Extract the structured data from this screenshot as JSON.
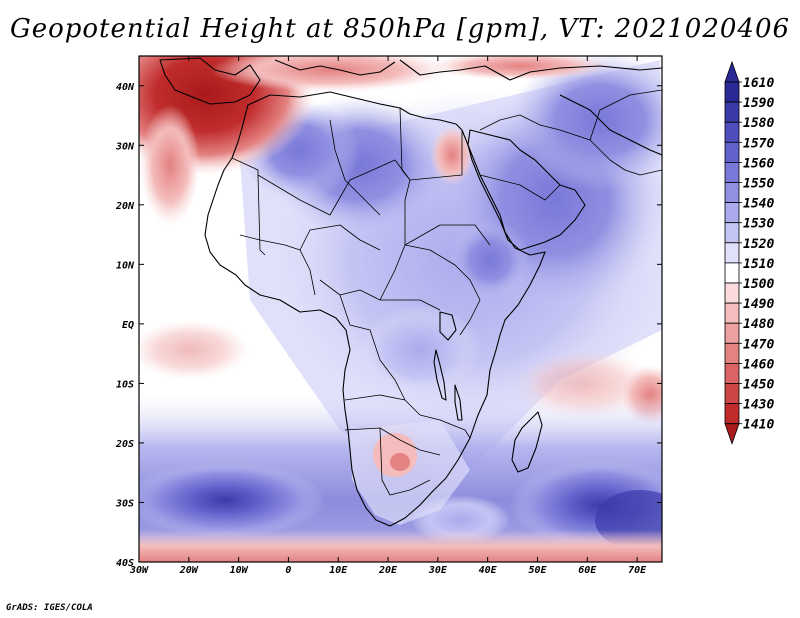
{
  "title": "Geopotential Height at 850hPa [gpm], VT: 2021020406",
  "footer": "GrADS: IGES/COLA",
  "map": {
    "variable": "Geopotential Height at 850hPa",
    "units": "gpm",
    "valid_time": "2021020406",
    "lon_range": [
      -30,
      75
    ],
    "lat_range": [
      -40,
      45
    ],
    "x_ticks": [
      "30W",
      "20W",
      "10W",
      "0",
      "10E",
      "20E",
      "30E",
      "40E",
      "50E",
      "60E",
      "70E"
    ],
    "y_ticks": [
      "40S",
      "30S",
      "20S",
      "10S",
      "EQ",
      "10N",
      "20N",
      "30N",
      "40N"
    ]
  },
  "colorbar": {
    "levels": [
      "1610",
      "1590",
      "1580",
      "1570",
      "1560",
      "1550",
      "1540",
      "1530",
      "1520",
      "1510",
      "1500",
      "1490",
      "1480",
      "1470",
      "1460",
      "1450",
      "1430",
      "1410"
    ],
    "colors": [
      "#2a2a96",
      "#3a3aab",
      "#4d4dbe",
      "#6262cc",
      "#7878d8",
      "#9090e2",
      "#aaaaec",
      "#c4c4f4",
      "#e0e0fa",
      "#ffffff",
      "#fadada",
      "#f4bcbc",
      "#eca0a0",
      "#e48282",
      "#da6464",
      "#cf4646",
      "#c02c2c",
      "#aa1a1a"
    ]
  }
}
